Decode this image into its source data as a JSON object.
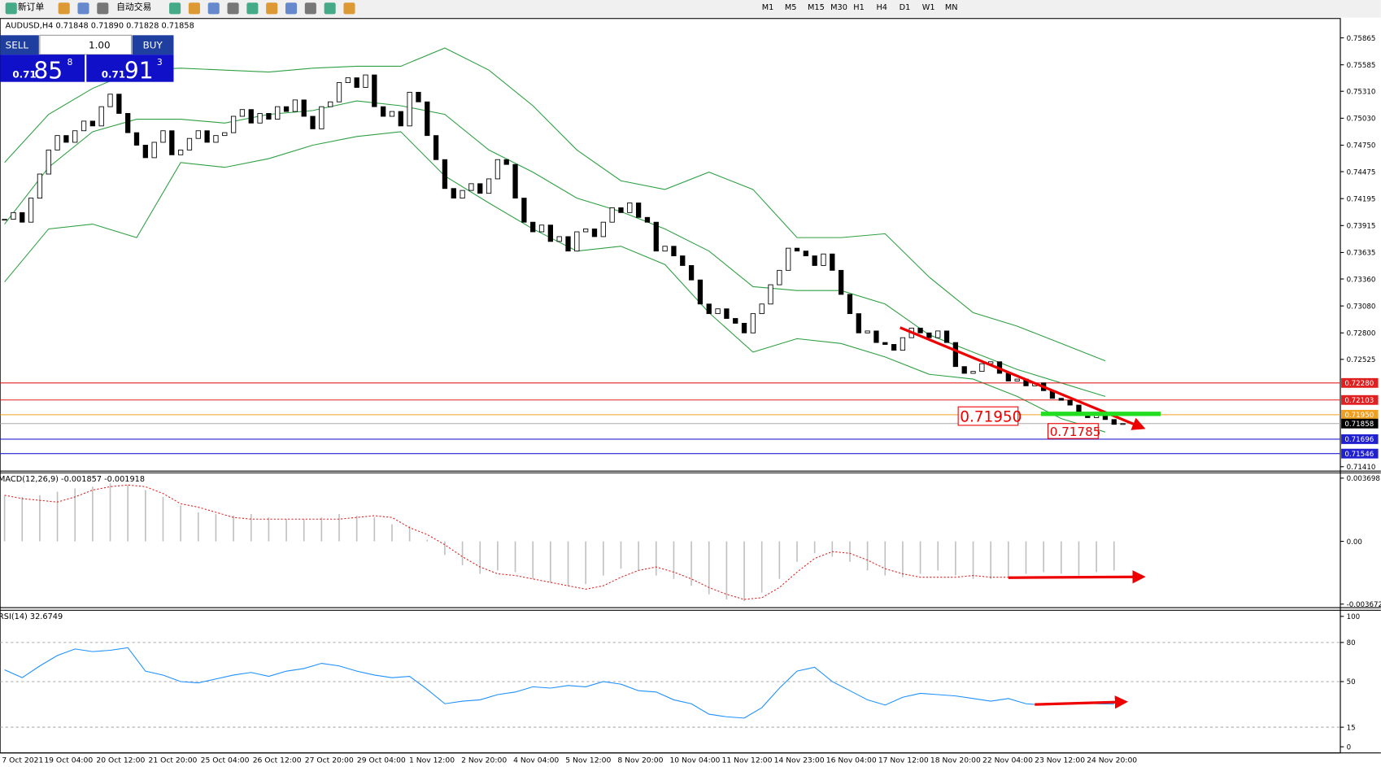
{
  "toolbar": {
    "buttons": [
      "新订单",
      "自动交易"
    ],
    "timeframes": [
      "M1",
      "M5",
      "M15",
      "M30",
      "H1",
      "H4",
      "D1",
      "W1",
      "MN"
    ]
  },
  "trade_panel": {
    "sell": "SELL",
    "buy": "BUY",
    "lot": "1.00",
    "sell_prefix": "0.71",
    "sell_big": "85",
    "sell_small": "8",
    "buy_prefix": "0.71",
    "buy_big": "91",
    "buy_small": "3"
  },
  "chart_data": [
    {
      "type": "candlestick",
      "title": "AUDUSD,H4 0.71848 0.71890 0.71828 0.71858",
      "values": [
        0.7398,
        0.7405,
        0.7395,
        0.742,
        0.7445,
        0.747,
        0.7485,
        0.7478,
        0.749,
        0.75,
        0.7495,
        0.7515,
        0.7528,
        0.7508,
        0.7488,
        0.7475,
        0.7462,
        0.7478,
        0.749,
        0.7465,
        0.747,
        0.7482,
        0.749,
        0.7478,
        0.7485,
        0.7488,
        0.7505,
        0.7512,
        0.7498,
        0.7508,
        0.7502,
        0.7515,
        0.751,
        0.7522,
        0.7505,
        0.7492,
        0.7515,
        0.752,
        0.754,
        0.7545,
        0.7535,
        0.7548,
        0.7515,
        0.7505,
        0.751,
        0.7495,
        0.753,
        0.752,
        0.7485,
        0.746,
        0.743,
        0.742,
        0.7428,
        0.7435,
        0.7425,
        0.744,
        0.746,
        0.7455,
        0.742,
        0.7395,
        0.7385,
        0.7392,
        0.7375,
        0.738,
        0.7365,
        0.7385,
        0.7388,
        0.738,
        0.7395,
        0.741,
        0.7405,
        0.7415,
        0.74,
        0.7395,
        0.7365,
        0.737,
        0.736,
        0.735,
        0.7335,
        0.731,
        0.73,
        0.7305,
        0.7295,
        0.729,
        0.728,
        0.73,
        0.731,
        0.733,
        0.7345,
        0.7368,
        0.7365,
        0.736,
        0.735,
        0.7362,
        0.7345,
        0.732,
        0.73,
        0.728,
        0.7282,
        0.727,
        0.7268,
        0.7262,
        0.7275,
        0.7285,
        0.728,
        0.7275,
        0.7282,
        0.727,
        0.7245,
        0.7238,
        0.724,
        0.7248,
        0.725,
        0.7238,
        0.723,
        0.7232,
        0.7225,
        0.7228,
        0.722,
        0.7212,
        0.721,
        0.7205,
        0.7195,
        0.7192,
        0.7196,
        0.719,
        0.7185,
        0.71858
      ],
      "bollinger": {
        "color": "#2ea043",
        "x": [
          0,
          5,
          10,
          15,
          20,
          25,
          30,
          35,
          40,
          45,
          50,
          55,
          60,
          65,
          70,
          75,
          80,
          85,
          90,
          95,
          100,
          105,
          110,
          115,
          120,
          125
        ],
        "upper": [
          0.7457,
          0.7507,
          0.7534,
          0.7553,
          0.7555,
          0.7553,
          0.7551,
          0.7555,
          0.7557,
          0.7557,
          0.7576,
          0.7553,
          0.7516,
          0.747,
          0.7438,
          0.7429,
          0.7447,
          0.7429,
          0.7379,
          0.7379,
          0.7383,
          0.7338,
          0.7301,
          0.7287,
          0.7269,
          0.7251
        ],
        "middle": [
          0.7393,
          0.7452,
          0.7489,
          0.7502,
          0.7502,
          0.7498,
          0.7507,
          0.7511,
          0.7521,
          0.7516,
          0.7507,
          0.747,
          0.7447,
          0.742,
          0.7406,
          0.7388,
          0.7365,
          0.7328,
          0.7324,
          0.7324,
          0.731,
          0.7278,
          0.726,
          0.7242,
          0.7228,
          0.7214
        ],
        "lower": [
          0.7333,
          0.7388,
          0.7393,
          0.7379,
          0.7457,
          0.7452,
          0.7461,
          0.7475,
          0.7484,
          0.7489,
          0.7443,
          0.7415,
          0.7388,
          0.7365,
          0.737,
          0.7351,
          0.7301,
          0.726,
          0.7274,
          0.7269,
          0.7255,
          0.7237,
          0.7232,
          0.7214,
          0.7191,
          0.7177
        ]
      },
      "ylim": [
        0.71364,
        0.76057
      ],
      "yticks": [
        {
          "value": 0.75865,
          "label": "0.75865"
        },
        {
          "value": 0.75585,
          "label": "0.75585"
        },
        {
          "value": 0.7531,
          "label": "0.75310"
        },
        {
          "value": 0.7503,
          "label": "0.75030"
        },
        {
          "value": 0.7475,
          "label": "0.74750"
        },
        {
          "value": 0.74475,
          "label": "0.74475"
        },
        {
          "value": 0.74195,
          "label": "0.74195"
        },
        {
          "value": 0.73915,
          "label": "0.73915"
        },
        {
          "value": 0.73635,
          "label": "0.73635"
        },
        {
          "value": 0.7336,
          "label": "0.73360"
        },
        {
          "value": 0.7308,
          "label": "0.73080"
        },
        {
          "value": 0.728,
          "label": "0.72800"
        },
        {
          "value": 0.72525,
          "label": "0.72525"
        },
        {
          "value": 0.7141,
          "label": "0.71410"
        }
      ],
      "levels": [
        {
          "value": 0.7228,
          "label": "0.72280",
          "color": "#e02020"
        },
        {
          "value": 0.72103,
          "label": "0.72103",
          "color": "#e02020"
        },
        {
          "value": 0.7195,
          "label": "0.71950",
          "color": "#f0a020"
        },
        {
          "value": 0.71858,
          "label": "0.71858",
          "color": "#000000"
        },
        {
          "value": 0.71696,
          "label": "0.71696",
          "color": "#2020d0"
        },
        {
          "value": 0.71546,
          "label": "0.71546",
          "color": "#2020d0"
        }
      ],
      "annotations": [
        "0.71950",
        "0.71785"
      ],
      "x_labels": [
        "7 Oct 2021",
        "19 Oct 04:00",
        "20 Oct 12:00",
        "21 Oct 20:00",
        "25 Oct 04:00",
        "26 Oct 12:00",
        "27 Oct 20:00",
        "29 Oct 04:00",
        "1 Nov 12:00",
        "2 Nov 20:00",
        "4 Nov 04:00",
        "5 Nov 12:00",
        "8 Nov 20:00",
        "10 Nov 04:00",
        "11 Nov 12:00",
        "14 Nov 23:00",
        "16 Nov 04:00",
        "17 Nov 12:00",
        "18 Nov 20:00",
        "22 Nov 04:00",
        "23 Nov 12:00",
        "24 Nov 20:00"
      ]
    },
    {
      "type": "macd",
      "title": "MACD(12,26,9) -0.001857 -0.001918",
      "series": [
        {
          "color": "#c0c0c0",
          "values": [
            0.0027,
            0.0026,
            0.0027,
            0.0029,
            0.0031,
            0.0032,
            0.0034,
            0.0033,
            0.003,
            0.0026,
            0.0021,
            0.0017,
            0.0016,
            0.0015,
            0.0016,
            0.0014,
            0.0013,
            0.0013,
            0.0014,
            0.0016,
            0.0015,
            0.0014,
            0.001,
            0.0009,
            0.0001,
            -0.0008,
            -0.0014,
            -0.0019,
            -0.0017,
            -0.0018,
            -0.0022,
            -0.0024,
            -0.0026,
            -0.0025,
            -0.002,
            -0.0016,
            -0.0017,
            -0.002,
            -0.0022,
            -0.0026,
            -0.0031,
            -0.0034,
            -0.0035,
            -0.003,
            -0.0022,
            -0.0012,
            -0.0007,
            -0.0009,
            -0.0012,
            -0.0017,
            -0.002,
            -0.0021,
            -0.0019,
            -0.0017,
            -0.002,
            -0.0022,
            -0.0022,
            -0.0021,
            -0.0019,
            -0.0018,
            -0.0019,
            -0.002,
            -0.0018,
            -0.0017
          ]
        },
        {
          "color": "#e02020",
          "values": [
            0.0027,
            0.0025,
            0.0024,
            0.0023,
            0.0026,
            0.003,
            0.0032,
            0.0033,
            0.0032,
            0.0028,
            0.0022,
            0.002,
            0.0017,
            0.0014,
            0.0013,
            0.0013,
            0.0013,
            0.0013,
            0.0013,
            0.0013,
            0.0014,
            0.0015,
            0.0014,
            0.0008,
            0.0004,
            -0.0002,
            -0.0009,
            -0.0015,
            -0.0019,
            -0.002,
            -0.0022,
            -0.0024,
            -0.0026,
            -0.0028,
            -0.0026,
            -0.0021,
            -0.0017,
            -0.0015,
            -0.0018,
            -0.0022,
            -0.0027,
            -0.0031,
            -0.0034,
            -0.0033,
            -0.0027,
            -0.0018,
            -0.001,
            -0.0006,
            -0.0007,
            -0.0011,
            -0.0016,
            -0.0019,
            -0.0021,
            -0.0021,
            -0.0021,
            -0.002,
            -0.0021,
            -0.0021,
            null,
            null,
            null,
            null,
            null,
            null
          ]
        }
      ],
      "ylim": [
        -0.003878,
        0.004007
      ],
      "yticks": [
        0.003698,
        {
          "value": 0,
          "label": "0.00"
        },
        -0.003672
      ]
    },
    {
      "type": "rsi",
      "title": "RSI(14) 32.6749",
      "color": "#1e90ff",
      "values": [
        59,
        53,
        62,
        70,
        75,
        73,
        74,
        76,
        58,
        55,
        50,
        49,
        52,
        55,
        57,
        54,
        58,
        60,
        64,
        62,
        58,
        55,
        53,
        54,
        44,
        33,
        35,
        36,
        40,
        42,
        46,
        45,
        47,
        46,
        50,
        48,
        43,
        42,
        36,
        33,
        25,
        23,
        22,
        30,
        45,
        58,
        61,
        50,
        43,
        36,
        32,
        38,
        41,
        40,
        39,
        37,
        35,
        37,
        33,
        32,
        33,
        34,
        33,
        32.6749
      ],
      "ylim": [
        -4.7,
        104.7
      ],
      "yticks": [
        100,
        80,
        50,
        15,
        0
      ],
      "grid": [
        80,
        50,
        15
      ]
    }
  ]
}
